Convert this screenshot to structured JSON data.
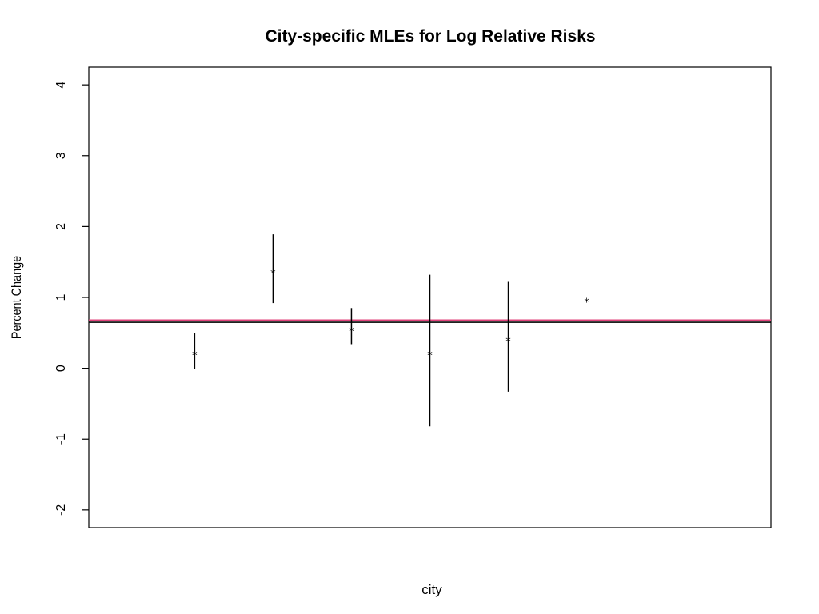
{
  "chart_data": {
    "type": "scatter",
    "title": "City-specific MLEs for Log Relative Risks",
    "xlabel": "city",
    "ylabel": "Percent Change",
    "xlim": [
      0,
      8.7
    ],
    "ylim": [
      -2.25,
      4.25
    ],
    "yticks": [
      -2,
      -1,
      0,
      1,
      2,
      3,
      4
    ],
    "xticks_shown": false,
    "grid": false,
    "marker": "*",
    "points": [
      {
        "x": 1.35,
        "y": 0.22,
        "lower": -0.01,
        "upper": 0.5
      },
      {
        "x": 2.35,
        "y": 1.37,
        "lower": 0.92,
        "upper": 1.89
      },
      {
        "x": 3.35,
        "y": 0.56,
        "lower": 0.34,
        "upper": 0.85
      },
      {
        "x": 4.35,
        "y": 0.22,
        "lower": -0.82,
        "upper": 1.32
      },
      {
        "x": 5.35,
        "y": 0.42,
        "lower": -0.33,
        "upper": 1.22
      },
      {
        "x": 6.35,
        "y": 0.97,
        "lower": null,
        "upper": null
      }
    ],
    "reference_lines": [
      {
        "y": 0.68,
        "color": "#e0407a"
      },
      {
        "y": 0.65,
        "color": "#000000"
      }
    ]
  }
}
